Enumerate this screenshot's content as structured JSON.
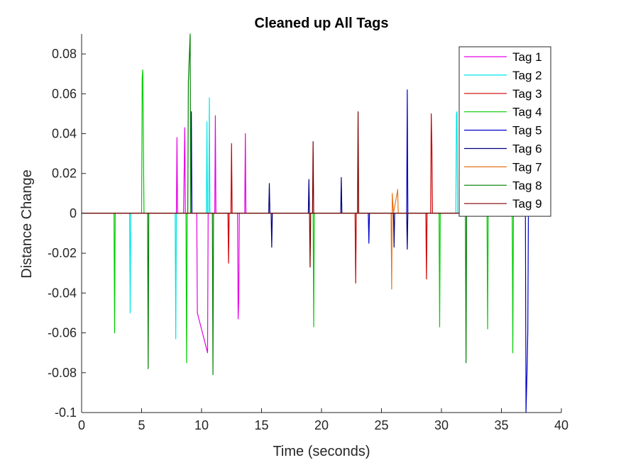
{
  "chart_data": {
    "type": "line",
    "title": "Cleaned up All Tags",
    "xlabel": "Time (seconds)",
    "ylabel": "Distance Change",
    "xlim": [
      0,
      40
    ],
    "ylim": [
      -0.1,
      0.09
    ],
    "xticks": [
      0,
      5,
      10,
      15,
      20,
      25,
      30,
      35,
      40
    ],
    "yticks": [
      -0.1,
      -0.08,
      -0.06,
      -0.04,
      -0.02,
      0,
      0.02,
      0.04,
      0.06,
      0.08
    ],
    "ytick_labels": [
      "-0.1",
      "-0.08",
      "-0.06",
      "-0.04",
      "-0.02",
      "0",
      "0.02",
      "0.04",
      "0.06",
      "0.08"
    ],
    "grid": false,
    "legend_position": "top-right",
    "series": [
      {
        "name": "Tag 1",
        "color": "#e600e6",
        "x": [
          0,
          7.9,
          7.95,
          8.0,
          8.5,
          8.6,
          8.65,
          8.7,
          9.6,
          9.65,
          10.5,
          10.55,
          11.1,
          11.15,
          11.2,
          13.0,
          13.05,
          13.1,
          13.15,
          13.6,
          13.65,
          13.7,
          38.5
        ],
        "y": [
          0,
          0,
          0.038,
          0,
          0,
          0.043,
          0,
          0,
          0,
          -0.05,
          -0.07,
          0,
          0,
          0.049,
          0,
          0,
          -0.053,
          -0.044,
          0,
          0,
          0.04,
          0,
          0
        ]
      },
      {
        "name": "Tag 2",
        "color": "#00e6e6",
        "x": [
          0,
          4.0,
          4.05,
          4.1,
          7.8,
          7.85,
          7.9,
          10.4,
          10.45,
          10.5,
          10.6,
          10.65,
          10.7,
          31.2,
          31.25,
          31.3,
          31.35,
          38.5
        ],
        "y": [
          0,
          0,
          -0.05,
          0,
          0,
          -0.063,
          0,
          0,
          0.046,
          0,
          0,
          0.058,
          0,
          0,
          0.05,
          0.051,
          0,
          0
        ]
      },
      {
        "name": "Tag 3",
        "color": "#cc0000",
        "x": [
          0,
          12.2,
          12.25,
          12.3,
          12.45,
          12.5,
          12.55,
          22.8,
          22.85,
          22.9,
          28.7,
          28.75,
          28.8,
          29.1,
          29.15,
          29.2,
          29.25,
          38.5
        ],
        "y": [
          0,
          0,
          -0.025,
          0,
          0,
          0.035,
          0,
          0,
          -0.035,
          0,
          0,
          -0.033,
          0,
          0,
          0.05,
          0.035,
          0,
          0
        ]
      },
      {
        "name": "Tag 4",
        "color": "#00cc00",
        "x": [
          0,
          2.7,
          2.75,
          2.8,
          5.0,
          5.05,
          5.1,
          5.2,
          8.7,
          8.75,
          8.8,
          9.0,
          19.3,
          19.35,
          19.4,
          29.8,
          29.85,
          29.9,
          33.8,
          33.85,
          33.9,
          35.9,
          35.95,
          36.0,
          38.5
        ],
        "y": [
          0,
          0,
          -0.06,
          0,
          0,
          0.068,
          0.072,
          0,
          0,
          -0.075,
          0,
          0,
          0,
          -0.057,
          0,
          0,
          -0.057,
          0,
          0,
          -0.058,
          0,
          0,
          -0.07,
          0,
          0
        ]
      },
      {
        "name": "Tag 5",
        "color": "#0000cc",
        "x": [
          0,
          9.1,
          9.15,
          9.2,
          23.9,
          23.95,
          24.0,
          27.1,
          27.15,
          27.2,
          37.0,
          37.05,
          37.15,
          37.2,
          37.25,
          38.5
        ],
        "y": [
          0,
          0,
          0.051,
          0,
          0,
          -0.015,
          0,
          0,
          0.062,
          0,
          0,
          -0.1,
          -0.076,
          -0.059,
          0,
          0
        ]
      },
      {
        "name": "Tag 6",
        "color": "#000080",
        "x": [
          0,
          15.6,
          15.65,
          15.7,
          15.8,
          15.85,
          15.9,
          18.9,
          18.95,
          19.0,
          21.6,
          21.65,
          21.7,
          26.0,
          26.05,
          26.1,
          27.1,
          27.15,
          27.2,
          38.5
        ],
        "y": [
          0,
          0,
          0.015,
          0,
          0,
          -0.017,
          0,
          0,
          0.017,
          0,
          0,
          0.018,
          0,
          0,
          -0.017,
          0,
          0,
          -0.018,
          0,
          0
        ]
      },
      {
        "name": "Tag 7",
        "color": "#e6731a",
        "x": [
          0,
          25.8,
          25.85,
          25.9,
          26.0,
          26.3,
          26.35,
          26.4,
          38.5
        ],
        "y": [
          0,
          0,
          -0.038,
          0.01,
          0,
          0.01,
          0.012,
          0,
          0
        ]
      },
      {
        "name": "Tag 8",
        "color": "#008000",
        "x": [
          0,
          5.5,
          5.55,
          5.6,
          8.8,
          8.85,
          8.9,
          9.05,
          9.1,
          10.9,
          10.95,
          11.0,
          32.0,
          32.05,
          32.1,
          38.5
        ],
        "y": [
          0,
          0,
          -0.078,
          0,
          0,
          0,
          0.066,
          0.09,
          0,
          0,
          -0.081,
          0,
          0,
          -0.075,
          0,
          0
        ]
      },
      {
        "name": "Tag 9",
        "color": "#800000",
        "x": [
          0,
          19.0,
          19.05,
          19.1,
          19.25,
          19.3,
          19.35,
          23.0,
          23.05,
          23.1,
          38.5
        ],
        "y": [
          0,
          0,
          -0.027,
          0,
          0,
          0.036,
          0,
          0,
          0.051,
          0,
          0
        ]
      }
    ]
  }
}
